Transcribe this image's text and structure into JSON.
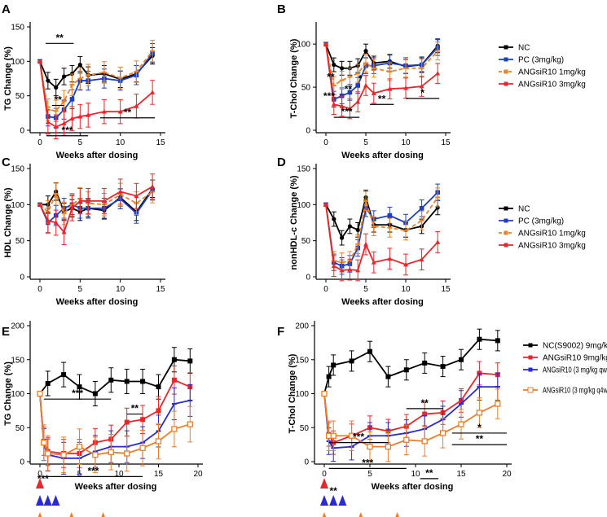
{
  "colors": {
    "nc": "#000000",
    "pc": "#1f3fbf",
    "low": "#e8832a",
    "high": "#e8262b",
    "qw": "#2a2ad0",
    "q4w": "#ee7d28"
  },
  "chart_data": [
    {
      "panel": "A",
      "type": "line",
      "xlabel": "Weeks after dosing",
      "ylabel": "TG Change (%)",
      "xlim": [
        0,
        15
      ],
      "ylim": [
        0,
        150
      ],
      "xticks": [
        0,
        5,
        10,
        15
      ],
      "yticks": [
        0,
        50,
        100,
        150
      ],
      "series": [
        {
          "name": "NC",
          "color": "#000000",
          "dash": false,
          "x": [
            0,
            1,
            2,
            3,
            4,
            5,
            6,
            8,
            10,
            12,
            14
          ],
          "y": [
            100,
            72,
            62,
            78,
            82,
            95,
            80,
            82,
            74,
            82,
            108
          ]
        },
        {
          "name": "PC (3mg/kg)",
          "color": "#1f3fbf",
          "dash": false,
          "x": [
            0,
            1,
            2,
            3,
            4,
            5,
            6,
            8,
            10,
            12,
            14
          ],
          "y": [
            100,
            20,
            18,
            30,
            45,
            72,
            72,
            75,
            72,
            80,
            112
          ]
        },
        {
          "name": "ANGsiR10 1mg/kg",
          "color": "#e8832a",
          "dash": true,
          "x": [
            0,
            1,
            2,
            3,
            4,
            5,
            6,
            8,
            10,
            12,
            14
          ],
          "y": [
            100,
            30,
            28,
            42,
            66,
            75,
            80,
            84,
            76,
            85,
            115
          ]
        },
        {
          "name": "ANGsiR10 3mg/kg",
          "color": "#e8262b",
          "dash": false,
          "x": [
            0,
            1,
            2,
            3,
            4,
            5,
            6,
            8,
            10,
            12,
            14
          ],
          "y": [
            100,
            12,
            5,
            10,
            17,
            20,
            22,
            27,
            27,
            35,
            55
          ]
        }
      ],
      "annotations": [
        {
          "text": "**",
          "color": "#1f3fbf",
          "x0": 0.7,
          "x1": 4.2,
          "y": 126
        },
        {
          "text": "**",
          "color": "#e8832a",
          "x0": 1.5,
          "x1": 3,
          "y": 36
        },
        {
          "text": "***",
          "color": "#e8262b",
          "x0": 0.8,
          "x1": 6,
          "y": -8
        },
        {
          "text": "**",
          "color": "#e8262b",
          "x0": 7.5,
          "x1": 14.3,
          "y": 18
        }
      ]
    },
    {
      "panel": "B",
      "type": "line",
      "xlabel": "Weeks after dosing",
      "ylabel": "T-Chol Change (%)",
      "xlim": [
        0,
        15
      ],
      "ylim": [
        0,
        120
      ],
      "xticks": [
        0,
        5,
        10,
        15
      ],
      "yticks": [
        0,
        50,
        100
      ],
      "legend": [
        "NC",
        "PC (3mg/kg)",
        "ANGsiR10 1mg/kg",
        "ANGsiR10 3mg/kg"
      ],
      "series": [
        {
          "name": "NC",
          "color": "#000000",
          "dash": false,
          "x": [
            0,
            1,
            2,
            3,
            4,
            5,
            6,
            8,
            10,
            12,
            14
          ],
          "y": [
            100,
            76,
            72,
            72,
            75,
            92,
            78,
            80,
            74,
            76,
            98
          ]
        },
        {
          "name": "PC (3mg/kg)",
          "color": "#1f3fbf",
          "dash": false,
          "x": [
            0,
            1,
            2,
            3,
            4,
            5,
            6,
            8,
            10,
            12,
            14
          ],
          "y": [
            100,
            36,
            40,
            44,
            52,
            75,
            75,
            78,
            75,
            76,
            96
          ]
        },
        {
          "name": "ANGsiR10 1mg/kg",
          "color": "#e8832a",
          "dash": true,
          "x": [
            0,
            1,
            2,
            3,
            4,
            5,
            6,
            8,
            10,
            12,
            14
          ],
          "y": [
            100,
            52,
            58,
            62,
            66,
            78,
            72,
            68,
            72,
            72,
            92
          ]
        },
        {
          "name": "ANGsiR10 3mg/kg",
          "color": "#e8262b",
          "dash": false,
          "x": [
            0,
            1,
            2,
            3,
            4,
            5,
            6,
            8,
            10,
            12,
            14
          ],
          "y": [
            100,
            30,
            28,
            25,
            33,
            52,
            43,
            48,
            49,
            51,
            66
          ]
        }
      ],
      "annotations": [
        {
          "text": "**",
          "color": "#e8832a",
          "x0": 0,
          "x1": 0,
          "y": 58
        },
        {
          "text": "**",
          "color": "#1f3fbf",
          "x0": 0,
          "x1": 0,
          "y": 44
        },
        {
          "text": "*",
          "color": "#1f3fbf",
          "x0": 0,
          "x1": 0,
          "y": 56
        },
        {
          "text": "***",
          "color": "#1f3fbf",
          "x0": 0,
          "x1": 0,
          "y": 36
        },
        {
          "text": "***",
          "color": "#e8262b",
          "x0": 1,
          "x1": 4.2,
          "y": 15
        },
        {
          "text": "**",
          "color": "#e8262b",
          "x0": 5.5,
          "x1": 8.5,
          "y": 30
        },
        {
          "text": "*",
          "color": "#e8262b",
          "x0": 10,
          "x1": 14.2,
          "y": 37
        }
      ]
    },
    {
      "panel": "C",
      "type": "line",
      "xlabel": "Weeks after dosing",
      "ylabel": "HDL Change (%)",
      "xlim": [
        0,
        15
      ],
      "ylim": [
        0,
        150
      ],
      "xticks": [
        0,
        5,
        10,
        15
      ],
      "yticks": [
        0,
        50,
        100,
        150
      ],
      "series": [
        {
          "name": "NC",
          "color": "#000000",
          "dash": false,
          "x": [
            0,
            1,
            2,
            3,
            4,
            5,
            6,
            8,
            10,
            12,
            14
          ],
          "y": [
            100,
            100,
            118,
            90,
            95,
            90,
            95,
            92,
            110,
            90,
            122
          ]
        },
        {
          "name": "PC (3mg/kg)",
          "color": "#1f3fbf",
          "dash": false,
          "x": [
            0,
            1,
            2,
            3,
            4,
            5,
            6,
            8,
            10,
            12,
            14
          ],
          "y": [
            100,
            75,
            85,
            95,
            100,
            95,
            95,
            95,
            108,
            88,
            120
          ]
        },
        {
          "name": "ANGsiR10 1mg/kg",
          "color": "#e8832a",
          "dash": true,
          "x": [
            0,
            1,
            2,
            3,
            4,
            5,
            6,
            8,
            10,
            12,
            14
          ],
          "y": [
            100,
            90,
            115,
            88,
            100,
            108,
            102,
            100,
            114,
            102,
            118
          ]
        },
        {
          "name": "ANGsiR10 3mg/kg",
          "color": "#e8262b",
          "dash": false,
          "x": [
            0,
            1,
            2,
            3,
            4,
            5,
            6,
            8,
            10,
            12,
            14
          ],
          "y": [
            100,
            78,
            75,
            62,
            95,
            105,
            105,
            105,
            118,
            112,
            125
          ]
        }
      ]
    },
    {
      "panel": "D",
      "type": "line",
      "xlabel": "Weeks after dosing",
      "ylabel": "nonHDL-c Change (%)",
      "xlim": [
        0,
        15
      ],
      "ylim": [
        0,
        150
      ],
      "xticks": [
        0,
        5,
        10,
        15
      ],
      "yticks": [
        0,
        50,
        100,
        150
      ],
      "legend": [
        "NC",
        "PC (3mg/kg)",
        "ANGsiR10 1mg/kg",
        "ANGsiR10 3mg/kg"
      ],
      "series": [
        {
          "name": "NC",
          "color": "#000000",
          "dash": false,
          "x": [
            0,
            1,
            2,
            3,
            4,
            5,
            6,
            8,
            10,
            12,
            14
          ],
          "y": [
            100,
            80,
            54,
            70,
            65,
            110,
            72,
            72,
            65,
            70,
            96
          ]
        },
        {
          "name": "PC (3mg/kg)",
          "color": "#1f3fbf",
          "dash": false,
          "x": [
            0,
            1,
            2,
            3,
            4,
            5,
            6,
            8,
            10,
            12,
            14
          ],
          "y": [
            100,
            20,
            15,
            18,
            40,
            95,
            80,
            85,
            75,
            95,
            117
          ]
        },
        {
          "name": "ANGsiR10 1mg/kg",
          "color": "#e8832a",
          "dash": true,
          "x": [
            0,
            1,
            2,
            3,
            4,
            5,
            6,
            8,
            10,
            12,
            14
          ],
          "y": [
            100,
            22,
            20,
            22,
            45,
            105,
            70,
            68,
            64,
            78,
            110
          ]
        },
        {
          "name": "ANGsiR10 3mg/kg",
          "color": "#e8262b",
          "dash": false,
          "x": [
            0,
            1,
            2,
            3,
            4,
            5,
            6,
            8,
            10,
            12,
            14
          ],
          "y": [
            100,
            15,
            9,
            10,
            9,
            45,
            20,
            25,
            17,
            24,
            48
          ]
        }
      ]
    },
    {
      "panel": "E",
      "type": "line",
      "xlabel": "Weeks after dosing",
      "ylabel": "TG Change (%)",
      "xlim": [
        0,
        20
      ],
      "ylim": [
        0,
        200
      ],
      "xticks": [
        0,
        5,
        10,
        15,
        20
      ],
      "yticks": [
        0,
        50,
        100,
        150,
        200
      ],
      "series": [
        {
          "name": "NC(S9002) 9mg/kg",
          "color": "#000000",
          "dash": false,
          "x": [
            0,
            1,
            3,
            5,
            7,
            9,
            11,
            13,
            15,
            17,
            19
          ],
          "y": [
            100,
            115,
            128,
            110,
            100,
            120,
            118,
            118,
            110,
            150,
            148
          ]
        },
        {
          "name": "ANGsiR10 9mg/kg",
          "color": "#e8262b",
          "dash": false,
          "x": [
            0,
            0.5,
            1,
            3,
            5,
            7,
            9,
            11,
            13,
            15,
            17,
            19
          ],
          "y": [
            100,
            30,
            15,
            12,
            12,
            28,
            33,
            58,
            62,
            75,
            120,
            110
          ]
        },
        {
          "name": "ANGsiR10 (3 mg/kg qw X 3)",
          "color": "#2a2ad0",
          "dash": false,
          "x": [
            0,
            0.5,
            1,
            3,
            5,
            7,
            9,
            11,
            13,
            15,
            17,
            19
          ],
          "y": [
            100,
            25,
            10,
            5,
            5,
            15,
            22,
            22,
            28,
            45,
            85,
            90
          ]
        },
        {
          "name": "ANGsiR10 (3 mg/kg q4w X 3)",
          "color": "#ee7d28",
          "dash": false,
          "x": [
            0,
            0.5,
            1,
            3,
            5,
            7,
            9,
            11,
            13,
            15,
            17,
            19
          ],
          "y": [
            100,
            28,
            12,
            10,
            22,
            10,
            14,
            12,
            20,
            30,
            48,
            55
          ]
        }
      ],
      "annotations": [
        {
          "text": "***",
          "color": "#e8262b",
          "x0": 0.5,
          "x1": 9,
          "y": 92
        },
        {
          "text": "**",
          "color": "#e8262b",
          "x0": 11,
          "x1": 13,
          "y": 70
        },
        {
          "text": "***",
          "color": "#2a2ad0",
          "x0": 0.5,
          "x1": 13,
          "y": -22
        },
        {
          "text": "***",
          "color": "#ee7d28",
          "x0": 0,
          "x1": 0,
          "y": -30
        }
      ],
      "dose_markers": [
        {
          "color": "#e8262b",
          "weeks": [
            0
          ]
        },
        {
          "color": "#2a2ad0",
          "weeks": [
            0,
            1,
            2
          ]
        },
        {
          "color": "#ee7d28",
          "weeks": [
            0,
            4,
            8
          ]
        }
      ]
    },
    {
      "panel": "F",
      "type": "line",
      "xlabel": "Weeks after dosing",
      "ylabel": "T-Chol Change (%)",
      "xlim": [
        0,
        20
      ],
      "ylim": [
        0,
        200
      ],
      "xticks": [
        0,
        5,
        10,
        15,
        20
      ],
      "yticks": [
        0,
        50,
        100,
        150,
        200
      ],
      "legend": [
        "NC(S9002) 9mg/kg",
        "ANGsiR10 9mg/kg",
        "ANGsiR10 (3 mg/kg qw X 3)",
        "ANGsiR10 (3 mg/kg q4w X 3)"
      ],
      "series": [
        {
          "name": "NC(S9002) 9mg/kg",
          "color": "#000000",
          "dash": false,
          "x": [
            0,
            0.5,
            1,
            3,
            5,
            7,
            9,
            11,
            13,
            15,
            17,
            19
          ],
          "y": [
            100,
            125,
            142,
            148,
            162,
            125,
            135,
            145,
            140,
            150,
            180,
            178
          ]
        },
        {
          "name": "ANGsiR10 9mg/kg",
          "color": "#e8262b",
          "dash": false,
          "x": [
            0,
            0.5,
            1,
            3,
            5,
            7,
            9,
            11,
            13,
            15,
            17,
            19
          ],
          "y": [
            100,
            40,
            28,
            38,
            50,
            45,
            52,
            70,
            72,
            90,
            130,
            128
          ]
        },
        {
          "name": "ANGsiR10 (3 mg/kg qw X 3)",
          "color": "#2a2ad0",
          "dash": false,
          "x": [
            0,
            0.5,
            1,
            3,
            5,
            7,
            9,
            11,
            13,
            15,
            17,
            19
          ],
          "y": [
            100,
            30,
            20,
            22,
            38,
            38,
            42,
            48,
            62,
            85,
            110,
            110
          ]
        },
        {
          "name": "ANGsiR10 (3 mg/kg q4w X 3)",
          "color": "#ee7d28",
          "dash": false,
          "x": [
            0,
            0.5,
            1,
            3,
            5,
            7,
            9,
            11,
            13,
            15,
            17,
            19
          ],
          "y": [
            100,
            38,
            38,
            38,
            22,
            22,
            32,
            30,
            42,
            55,
            72,
            85
          ]
        }
      ],
      "annotations": [
        {
          "text": "**",
          "color": "#e8262b",
          "x0": 9,
          "x1": 13,
          "y": 78
        },
        {
          "text": "***",
          "color": "#e8262b",
          "x0": 0.5,
          "x1": 7,
          "y": 28
        },
        {
          "text": "***",
          "color": "#2a2ad0",
          "x0": 0.5,
          "x1": 9,
          "y": -10
        },
        {
          "text": "**",
          "color": "#ee7d28",
          "x0": 10.5,
          "x1": 12.5,
          "y": -25
        },
        {
          "text": "**",
          "color": "#2a2ad0",
          "x0": 0,
          "x1": 0,
          "y": -48
        },
        {
          "text": "*",
          "color": "#2a2ad0",
          "x0": 14,
          "x1": 20,
          "y": 42
        },
        {
          "text": "**",
          "color": "#ee7d28",
          "x0": 14,
          "x1": 20,
          "y": 25
        }
      ],
      "dose_markers": [
        {
          "color": "#e8262b",
          "weeks": [
            0
          ]
        },
        {
          "color": "#2a2ad0",
          "weeks": [
            0,
            1,
            2
          ]
        },
        {
          "color": "#ee7d28",
          "weeks": [
            0,
            4,
            8
          ]
        }
      ]
    }
  ]
}
